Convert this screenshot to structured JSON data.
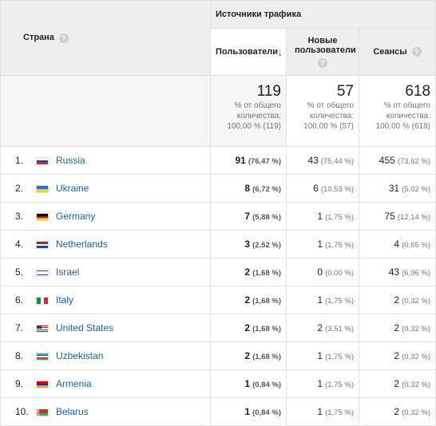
{
  "header": {
    "country_label": "Страна",
    "group_label": "Источники трафика",
    "users_label": "Пользователи",
    "new_users_label": "Новые пользователи",
    "sessions_label": "Сеансы",
    "help_glyph": "?",
    "sort_arrow": "↓"
  },
  "totals": {
    "users": {
      "value": "119",
      "line1": "% от общего",
      "line2": "количества:",
      "line3": "100,00 % (119)"
    },
    "new_users": {
      "value": "57",
      "line1": "% от общего",
      "line2": "количества:",
      "line3": "100,00 % (57)"
    },
    "sessions": {
      "value": "618",
      "line1": "% от общего",
      "line2": "количества:",
      "line3": "100,00 % (618)"
    }
  },
  "rows": [
    {
      "index": "1.",
      "country": "Russia",
      "flag": "flag-russia",
      "users": "91",
      "users_pct": "(76,47 %)",
      "new_users": "43",
      "new_users_pct": "(75,44 %)",
      "sessions": "455",
      "sessions_pct": "(73,62 %)"
    },
    {
      "index": "2.",
      "country": "Ukraine",
      "flag": "flag-ukraine",
      "users": "8",
      "users_pct": "(6,72 %)",
      "new_users": "6",
      "new_users_pct": "(10,53 %)",
      "sessions": "31",
      "sessions_pct": "(5,02 %)"
    },
    {
      "index": "3.",
      "country": "Germany",
      "flag": "flag-germany",
      "users": "7",
      "users_pct": "(5,88 %)",
      "new_users": "1",
      "new_users_pct": "(1,75 %)",
      "sessions": "75",
      "sessions_pct": "(12,14 %)"
    },
    {
      "index": "4.",
      "country": "Netherlands",
      "flag": "flag-netherlands",
      "users": "3",
      "users_pct": "(2,52 %)",
      "new_users": "1",
      "new_users_pct": "(1,75 %)",
      "sessions": "4",
      "sessions_pct": "(0,65 %)"
    },
    {
      "index": "5.",
      "country": "Israel",
      "flag": "flag-israel",
      "users": "2",
      "users_pct": "(1,68 %)",
      "new_users": "0",
      "new_users_pct": "(0,00 %)",
      "sessions": "43",
      "sessions_pct": "(6,96 %)"
    },
    {
      "index": "6.",
      "country": "Italy",
      "flag": "flag-italy",
      "users": "2",
      "users_pct": "(1,68 %)",
      "new_users": "1",
      "new_users_pct": "(1,75 %)",
      "sessions": "2",
      "sessions_pct": "(0,32 %)"
    },
    {
      "index": "7.",
      "country": "United States",
      "flag": "flag-united-states",
      "users": "2",
      "users_pct": "(1,68 %)",
      "new_users": "2",
      "new_users_pct": "(3,51 %)",
      "sessions": "2",
      "sessions_pct": "(0,32 %)"
    },
    {
      "index": "8.",
      "country": "Uzbekistan",
      "flag": "flag-uzbekistan",
      "users": "2",
      "users_pct": "(1,68 %)",
      "new_users": "1",
      "new_users_pct": "(1,75 %)",
      "sessions": "2",
      "sessions_pct": "(0,32 %)"
    },
    {
      "index": "9.",
      "country": "Armenia",
      "flag": "flag-armenia",
      "users": "1",
      "users_pct": "(0,84 %)",
      "new_users": "1",
      "new_users_pct": "(1,75 %)",
      "sessions": "2",
      "sessions_pct": "(0,32 %)"
    },
    {
      "index": "10.",
      "country": "Belarus",
      "flag": "flag-belarus",
      "users": "1",
      "users_pct": "(0,84 %)",
      "new_users": "1",
      "new_users_pct": "(1,75 %)",
      "sessions": "2",
      "sessions_pct": "(0,32 %)"
    }
  ]
}
